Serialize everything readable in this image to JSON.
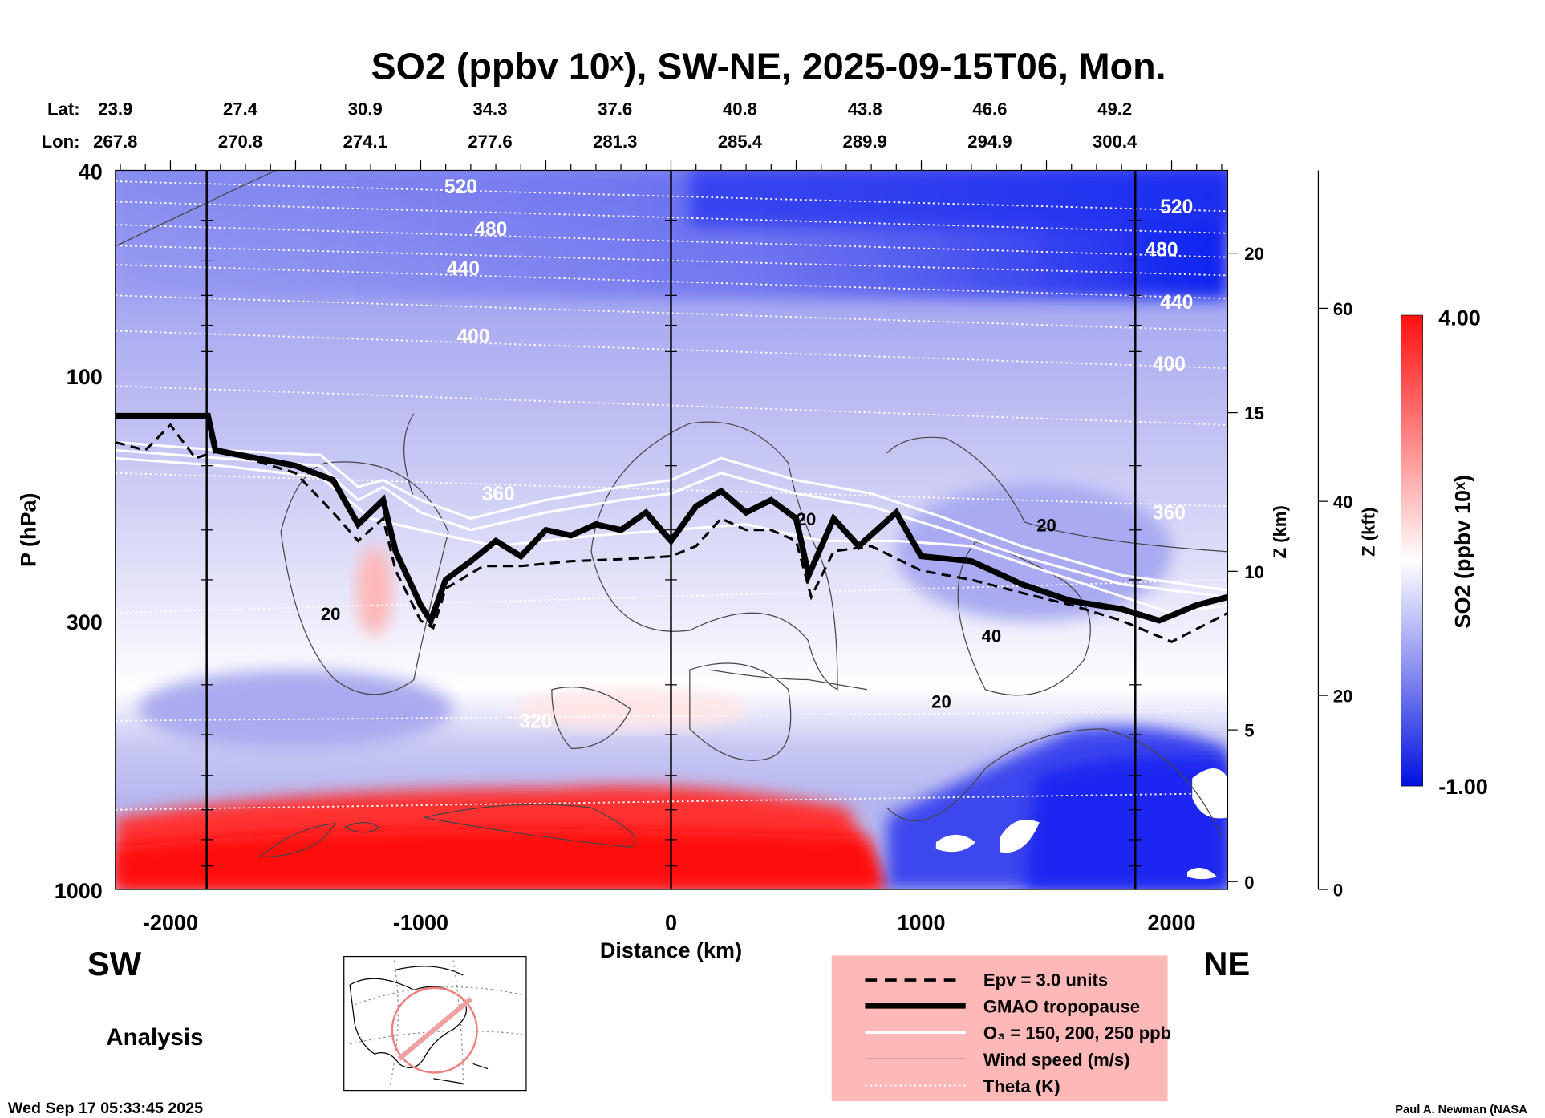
{
  "header": {
    "title": "SO2 (ppbv 10ˣ), SW-NE, 2025-09-15T06, Mon.",
    "lat_label": "Lat:",
    "lon_label": "Lon:",
    "lat": [
      "23.9",
      "27.4",
      "30.9",
      "34.3",
      "37.6",
      "40.8",
      "43.8",
      "46.6",
      "49.2"
    ],
    "lon": [
      "267.8",
      "270.8",
      "274.1",
      "277.6",
      "281.3",
      "285.4",
      "289.9",
      "294.9",
      "300.4"
    ]
  },
  "footer": {
    "sw": "SW",
    "ne": "NE",
    "analysis": "Analysis",
    "timestamp": "Wed Sep 17 05:33:45 2025",
    "credit": "Paul A. Newman (NASA"
  },
  "legend": {
    "items": [
      "Epv = 3.0 units",
      "GMAO tropopause",
      "O₃ = 150, 200, 250 ppb",
      "Wind speed (m/s)",
      "Theta (K)"
    ]
  },
  "colorbar": {
    "label": "SO2 (ppbv 10ˣ)",
    "max": "4.00",
    "min": "-1.00",
    "colors": [
      "#ff0000",
      "#ffffff",
      "#0000ff"
    ]
  },
  "chart_data": {
    "type": "heatmap",
    "title": "SO2 (ppbv 10ˣ), SW-NE, 2025-09-15T06, Mon.",
    "xlabel": "Distance (km)",
    "ylabel": "P (hPa)",
    "y2label": "Z (km)",
    "y3label": "Z (kft)",
    "xlim": [
      -2220,
      2224
    ],
    "ylim": [
      1000,
      40
    ],
    "yscale": "log",
    "xticks": [
      "-2000",
      "-1000",
      "0",
      "1000",
      "2000"
    ],
    "xtick_values": [
      -2000,
      -1000,
      0,
      1000,
      2000
    ],
    "yticks": [
      "40",
      "100",
      "300",
      "1000"
    ],
    "ytick_values": [
      40,
      100,
      300,
      1000
    ],
    "zkm_ticks": [
      "0",
      "5",
      "10",
      "15",
      "20"
    ],
    "zkft_ticks": [
      "0",
      "20",
      "40",
      "60"
    ],
    "colorbar_range": [
      -1.0,
      4.0
    ],
    "tropopause": [
      [
        -2220,
        120
      ],
      [
        -1850,
        120
      ],
      [
        -1820,
        140
      ],
      [
        -1500,
        150
      ],
      [
        -1350,
        160
      ],
      [
        -1250,
        195
      ],
      [
        -1150,
        175
      ],
      [
        -1100,
        220
      ],
      [
        -1000,
        280
      ],
      [
        -960,
        300
      ],
      [
        -900,
        250
      ],
      [
        -800,
        230
      ],
      [
        -700,
        210
      ],
      [
        -600,
        225
      ],
      [
        -500,
        200
      ],
      [
        -400,
        205
      ],
      [
        -300,
        195
      ],
      [
        -200,
        200
      ],
      [
        -100,
        185
      ],
      [
        0,
        210
      ],
      [
        100,
        180
      ],
      [
        200,
        168
      ],
      [
        300,
        185
      ],
      [
        400,
        175
      ],
      [
        500,
        190
      ],
      [
        550,
        245
      ],
      [
        650,
        190
      ],
      [
        750,
        215
      ],
      [
        900,
        185
      ],
      [
        1000,
        225
      ],
      [
        1200,
        230
      ],
      [
        1400,
        255
      ],
      [
        1600,
        275
      ],
      [
        1800,
        285
      ],
      [
        1950,
        300
      ],
      [
        2100,
        280
      ],
      [
        2224,
        270
      ]
    ],
    "epv": [
      [
        -2220,
        135
      ],
      [
        -2100,
        140
      ],
      [
        -2000,
        125
      ],
      [
        -1900,
        145
      ],
      [
        -1800,
        140
      ],
      [
        -1500,
        155
      ],
      [
        -1350,
        185
      ],
      [
        -1250,
        210
      ],
      [
        -1150,
        190
      ],
      [
        -1100,
        240
      ],
      [
        -1000,
        300
      ],
      [
        -950,
        310
      ],
      [
        -900,
        260
      ],
      [
        -750,
        235
      ],
      [
        -600,
        235
      ],
      [
        -400,
        230
      ],
      [
        -200,
        228
      ],
      [
        0,
        225
      ],
      [
        100,
        215
      ],
      [
        200,
        190
      ],
      [
        300,
        200
      ],
      [
        400,
        200
      ],
      [
        500,
        210
      ],
      [
        560,
        270
      ],
      [
        650,
        220
      ],
      [
        800,
        215
      ],
      [
        1000,
        240
      ],
      [
        1200,
        250
      ],
      [
        1400,
        265
      ],
      [
        1600,
        280
      ],
      [
        1800,
        300
      ],
      [
        2000,
        330
      ],
      [
        2224,
        290
      ]
    ],
    "o3_lines": [
      [
        [
          -2220,
          140
        ],
        [
          -1800,
          145
        ],
        [
          -1400,
          150
        ],
        [
          -1250,
          175
        ],
        [
          -1150,
          165
        ],
        [
          -1000,
          185
        ],
        [
          -800,
          200
        ],
        [
          -500,
          185
        ],
        [
          -200,
          175
        ],
        [
          0,
          170
        ],
        [
          200,
          155
        ],
        [
          500,
          170
        ],
        [
          800,
          180
        ],
        [
          1100,
          200
        ],
        [
          1400,
          225
        ],
        [
          1800,
          255
        ],
        [
          2224,
          270
        ]
      ],
      [
        [
          -2220,
          135
        ],
        [
          -1800,
          140
        ],
        [
          -1400,
          143
        ],
        [
          -1250,
          165
        ],
        [
          -1150,
          160
        ],
        [
          -1000,
          175
        ],
        [
          -800,
          190
        ],
        [
          -500,
          175
        ],
        [
          -200,
          165
        ],
        [
          0,
          160
        ],
        [
          200,
          145
        ],
        [
          500,
          160
        ],
        [
          800,
          170
        ],
        [
          1100,
          190
        ],
        [
          1400,
          215
        ],
        [
          1800,
          245
        ],
        [
          2224,
          262
        ]
      ],
      [
        [
          -2220,
          145
        ],
        [
          -1800,
          150
        ],
        [
          -1400,
          158
        ],
        [
          -1200,
          190
        ],
        [
          -1000,
          200
        ],
        [
          -700,
          215
        ],
        [
          -300,
          205
        ],
        [
          0,
          200
        ],
        [
          300,
          195
        ],
        [
          600,
          210
        ],
        [
          900,
          210
        ],
        [
          1200,
          215
        ],
        [
          1600,
          250
        ],
        [
          2000,
          290
        ],
        [
          2224,
          280
        ]
      ]
    ],
    "theta": [
      {
        "level": "520",
        "p": [
          42,
          48
        ]
      },
      {
        "level": "500",
        "p": [
          46,
          53
        ]
      },
      {
        "level": "480",
        "p": [
          51,
          59
        ]
      },
      {
        "level": "460",
        "p": [
          56,
          64
        ]
      },
      {
        "level": "440",
        "p": [
          61,
          71
        ]
      },
      {
        "level": "420",
        "p": [
          70,
          82
        ]
      },
      {
        "level": "400",
        "p": [
          82,
          97
        ]
      },
      {
        "level": "380",
        "p": [
          105,
          125
        ]
      },
      {
        "level": "360",
        "p": [
          155,
          180
        ]
      },
      {
        "level": "340",
        "p": [
          290,
          250
        ]
      },
      {
        "level": "320",
        "p": [
          470,
          450
        ]
      },
      {
        "level": "300",
        "p": [
          700,
          650
        ]
      }
    ],
    "theta_labels": [
      {
        "text": "520",
        "km": -840,
        "p": 43
      },
      {
        "text": "480",
        "km": -720,
        "p": 52
      },
      {
        "text": "440",
        "km": -830,
        "p": 62
      },
      {
        "text": "400",
        "km": -790,
        "p": 84
      },
      {
        "text": "360",
        "km": -690,
        "p": 170
      },
      {
        "text": "320",
        "km": -540,
        "p": 470
      },
      {
        "text": "520",
        "km": 2020,
        "p": 47
      },
      {
        "text": "480",
        "km": 1960,
        "p": 57
      },
      {
        "text": "440",
        "km": 2020,
        "p": 72
      },
      {
        "text": "400",
        "km": 1990,
        "p": 95
      },
      {
        "text": "360",
        "km": 1990,
        "p": 185
      }
    ],
    "wind_labels": [
      {
        "text": "20",
        "km": -1360,
        "p": 290
      },
      {
        "text": "20",
        "km": 1500,
        "p": 195
      },
      {
        "text": "20",
        "km": 1080,
        "p": 430
      },
      {
        "text": "40",
        "km": 1280,
        "p": 320
      },
      {
        "text": "20",
        "km": 540,
        "p": 190
      }
    ]
  }
}
